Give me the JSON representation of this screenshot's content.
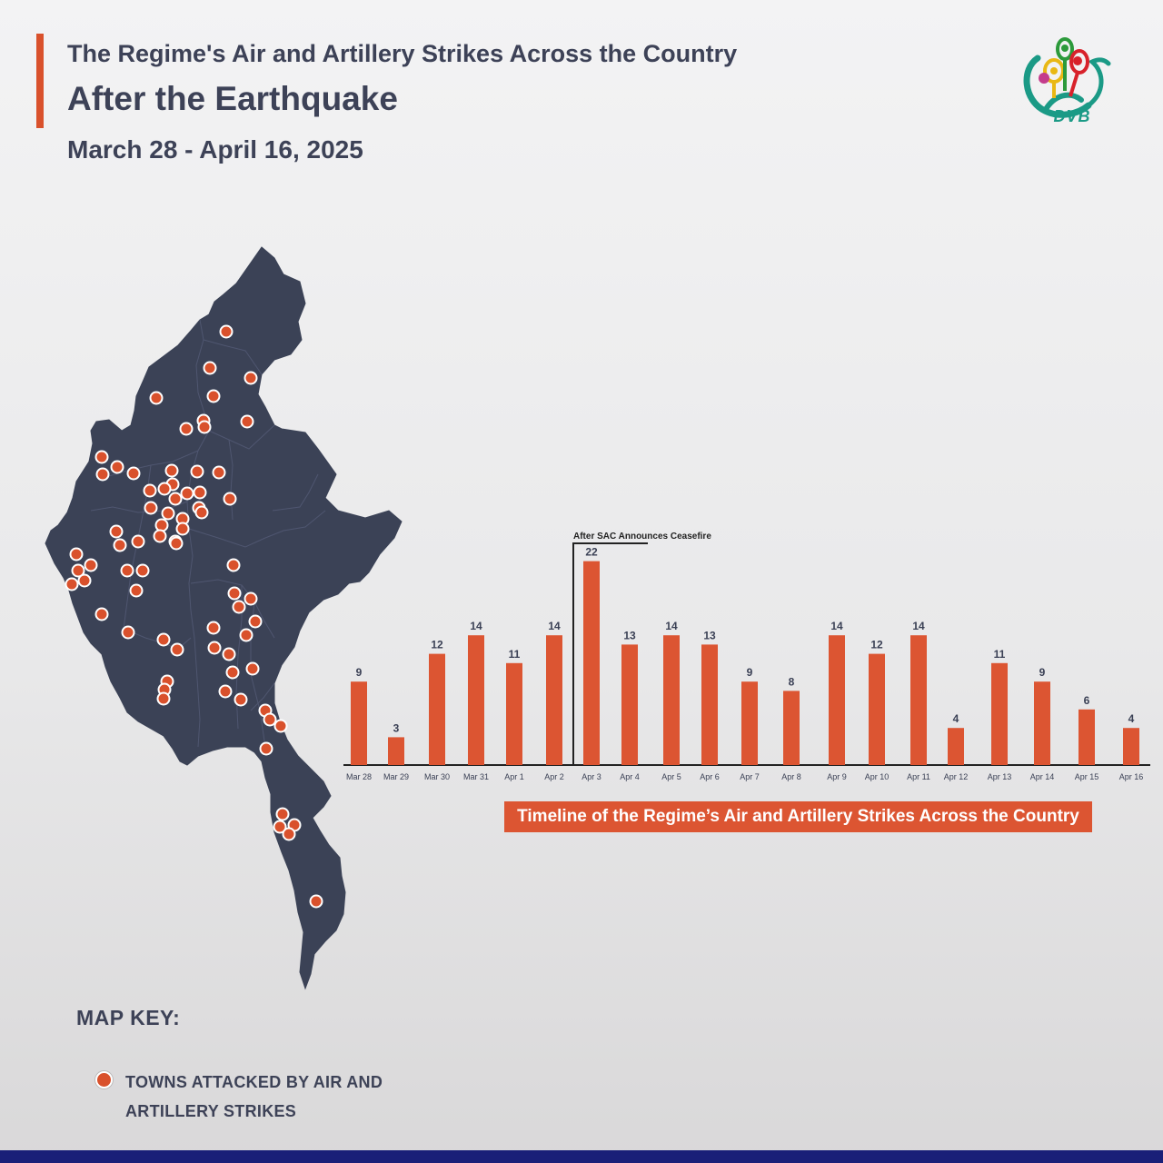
{
  "header": {
    "title_line1": "The Regime's Air and Artillery Strikes Across the Country",
    "title_line2": "After the Earthquake",
    "date_range": "March 28 - April 16, 2025"
  },
  "logo": {
    "text": "DVB",
    "icon": "dvb-peacock-logo"
  },
  "colors": {
    "accent": "#d9512c",
    "map_fill": "#3b4256",
    "bar": "#dc5532",
    "bottom_band": "#1a1f78"
  },
  "map": {
    "region": "Myanmar",
    "marker_icon": "attack-marker-dot"
  },
  "chart_data": {
    "type": "bar",
    "categories": [
      "Mar 28",
      "Mar 29",
      "Mar 30",
      "Mar 31",
      "Apr 1",
      "Apr 2",
      "Apr 3",
      "Apr 4",
      "Apr 5",
      "Apr 6",
      "Apr 7",
      "Apr 8",
      "Apr 9",
      "Apr 10",
      "Apr 11",
      "Apr 12",
      "Apr 13",
      "Apr 14",
      "Apr 15",
      "Apr 16"
    ],
    "values": [
      9,
      3,
      12,
      14,
      11,
      14,
      22,
      13,
      14,
      13,
      9,
      8,
      14,
      12,
      14,
      4,
      11,
      9,
      6,
      4
    ],
    "title": "Timeline of the Regime’s Air and Artillery Strikes Across the Country",
    "annotation": {
      "text": "After SAC Announces Ceasefire",
      "at_category": "Apr 3"
    },
    "data_labels": true,
    "grid": false,
    "ylim": [
      0,
      22
    ]
  },
  "map_key": {
    "title": "MAP KEY:",
    "marker_label": "TOWNS ATTACKED BY AIR AND ARTILLERY STRIKES"
  }
}
